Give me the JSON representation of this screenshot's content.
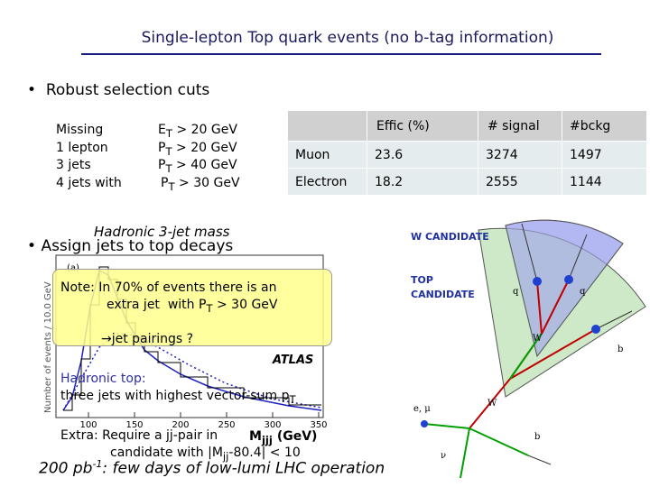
{
  "title": "Single-lepton Top quark events (no b-tag information)",
  "bullets": [
    "Robust selection cuts",
    "Assign jets to top decays"
  ],
  "cuts": [
    {
      "name": "Missing",
      "var": "E",
      "sub": "T",
      "cut": "> 20 GeV"
    },
    {
      "name": "1 lepton",
      "var": "P",
      "sub": "T",
      "cut": "> 20 GeV"
    },
    {
      "name": "3 jets",
      "var": "P",
      "sub": "T",
      "cut": "> 40 GeV"
    },
    {
      "name": "4 jets with",
      "var": "P",
      "sub": "T",
      "cut": "> 30 GeV"
    }
  ],
  "table": {
    "header": [
      "Effic (%)",
      "# signal",
      "#bckg"
    ],
    "rows": [
      [
        "Muon",
        "23.6",
        "3274",
        "1497"
      ],
      [
        "Electron",
        "18.2",
        "2555",
        "1144"
      ]
    ]
  },
  "plot": {
    "title": "Hadronic 3-jet mass",
    "panel": "(a)",
    "logo": "ATLAS",
    "ylabel": "Number of events / 10.0 GeV",
    "xticks": [
      "100",
      "150",
      "200",
      "250",
      "300",
      "350"
    ],
    "xlabel_main": "M",
    "xlabel_sub": "jjj",
    "xlabel_unit": "(GeV)"
  },
  "note": {
    "line1": "Note: In 70% of events there is an",
    "line2_pre": "extra jet  with P",
    "line2_sub": "T",
    "line2_post": " > 30 GeV",
    "arrow": "→jet pairings ?"
  },
  "hadronic": {
    "line1": "Hadronic top:",
    "line2_pre": "three jets with highest vector-sum p",
    "line2_sub": "T"
  },
  "extra": {
    "line1": "Extra: Require a jj-pair in",
    "line2_pre": "candidate with |M",
    "line2_sub": "jj",
    "line2_post": "-80.4| < 10"
  },
  "footer": {
    "pre": "200 pb",
    "sup": "-1",
    "post": ": few days of low-lumi LHC operation"
  },
  "diagram": {
    "w_candidate": "W CANDIDATE",
    "top_candidate": [
      "TOP",
      "CANDIDATE"
    ],
    "labels": [
      "q",
      "q",
      "W",
      "b",
      "e, μ",
      "W",
      "b",
      "ν"
    ]
  }
}
